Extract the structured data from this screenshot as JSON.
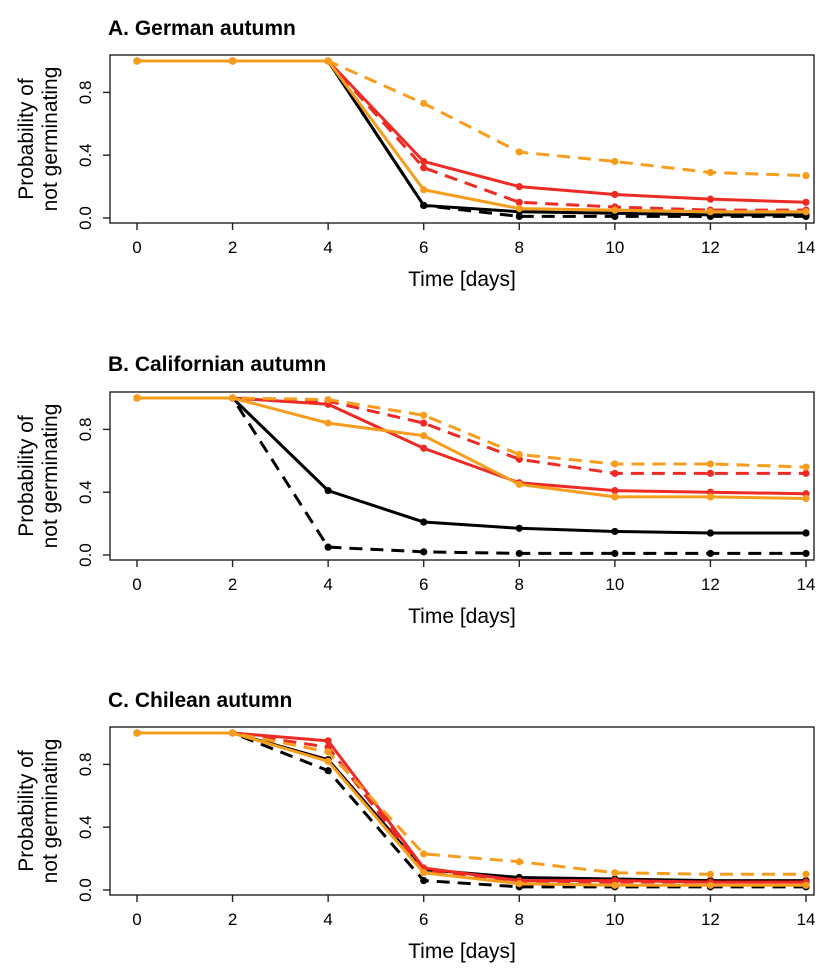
{
  "chart_data": [
    {
      "type": "line",
      "title": "A. German autumn",
      "xlabel": "Time [days]",
      "ylabel": [
        "Probability of",
        "not germinating"
      ],
      "x": [
        0,
        2,
        4,
        6,
        8,
        10,
        12,
        14
      ],
      "xlim": [
        0,
        14
      ],
      "ylim": [
        0,
        1
      ],
      "xticks": [
        "0",
        "2",
        "4",
        "6",
        "8",
        "10",
        "12",
        "14"
      ],
      "yticks": [
        "0.0",
        "0.4",
        "0.8"
      ],
      "ytick_values": [
        0,
        0.4,
        0.8
      ],
      "grid": false,
      "series": [
        {
          "color": "#000000",
          "dashed": false,
          "values": [
            1.0,
            1.0,
            1.0,
            0.08,
            0.04,
            0.03,
            0.02,
            0.02
          ]
        },
        {
          "color": "#000000",
          "dashed": true,
          "values": [
            1.0,
            1.0,
            1.0,
            0.08,
            0.01,
            0.01,
            0.01,
            0.01
          ]
        },
        {
          "color": "#ee2a24",
          "dashed": false,
          "values": [
            1.0,
            1.0,
            1.0,
            0.36,
            0.2,
            0.15,
            0.12,
            0.1
          ]
        },
        {
          "color": "#ee2a24",
          "dashed": true,
          "values": [
            1.0,
            1.0,
            1.0,
            0.32,
            0.1,
            0.07,
            0.05,
            0.05
          ]
        },
        {
          "color": "#f79d1e",
          "dashed": false,
          "values": [
            1.0,
            1.0,
            1.0,
            0.18,
            0.06,
            0.05,
            0.04,
            0.04
          ]
        },
        {
          "color": "#f79d1e",
          "dashed": true,
          "values": [
            1.0,
            1.0,
            1.0,
            0.73,
            0.42,
            0.36,
            0.29,
            0.27
          ]
        }
      ]
    },
    {
      "type": "line",
      "title": "B. Californian autumn",
      "xlabel": "Time [days]",
      "ylabel": [
        "Probability of",
        "not germinating"
      ],
      "x": [
        0,
        2,
        4,
        6,
        8,
        10,
        12,
        14
      ],
      "xlim": [
        0,
        14
      ],
      "ylim": [
        0,
        1
      ],
      "xticks": [
        "0",
        "2",
        "4",
        "6",
        "8",
        "10",
        "12",
        "14"
      ],
      "yticks": [
        "0.0",
        "0.4",
        "0.8"
      ],
      "ytick_values": [
        0,
        0.4,
        0.8
      ],
      "grid": false,
      "series": [
        {
          "color": "#000000",
          "dashed": false,
          "values": [
            1.0,
            1.0,
            0.41,
            0.21,
            0.17,
            0.15,
            0.14,
            0.14
          ]
        },
        {
          "color": "#000000",
          "dashed": true,
          "values": [
            1.0,
            1.0,
            0.05,
            0.02,
            0.01,
            0.01,
            0.01,
            0.01
          ]
        },
        {
          "color": "#ee2a24",
          "dashed": false,
          "values": [
            1.0,
            1.0,
            0.96,
            0.68,
            0.46,
            0.41,
            0.4,
            0.39
          ]
        },
        {
          "color": "#ee2a24",
          "dashed": true,
          "values": [
            1.0,
            1.0,
            0.98,
            0.84,
            0.61,
            0.52,
            0.52,
            0.52
          ]
        },
        {
          "color": "#f79d1e",
          "dashed": false,
          "values": [
            1.0,
            1.0,
            0.84,
            0.76,
            0.45,
            0.37,
            0.37,
            0.36
          ]
        },
        {
          "color": "#f79d1e",
          "dashed": true,
          "values": [
            1.0,
            1.0,
            0.99,
            0.89,
            0.64,
            0.58,
            0.58,
            0.56
          ]
        }
      ]
    },
    {
      "type": "line",
      "title": "C. Chilean autumn",
      "xlabel": "Time [days]",
      "ylabel": [
        "Probability of",
        "not germinating"
      ],
      "x": [
        0,
        2,
        4,
        6,
        8,
        10,
        12,
        14
      ],
      "xlim": [
        0,
        14
      ],
      "ylim": [
        0,
        1
      ],
      "xticks": [
        "0",
        "2",
        "4",
        "6",
        "8",
        "10",
        "12",
        "14"
      ],
      "yticks": [
        "0.0",
        "0.4",
        "0.8"
      ],
      "ytick_values": [
        0,
        0.4,
        0.8
      ],
      "grid": false,
      "series": [
        {
          "color": "#000000",
          "dashed": false,
          "values": [
            1.0,
            1.0,
            0.83,
            0.13,
            0.08,
            0.07,
            0.06,
            0.06
          ]
        },
        {
          "color": "#000000",
          "dashed": true,
          "values": [
            1.0,
            1.0,
            0.76,
            0.06,
            0.02,
            0.02,
            0.02,
            0.02
          ]
        },
        {
          "color": "#ee2a24",
          "dashed": false,
          "values": [
            1.0,
            1.0,
            0.95,
            0.14,
            0.06,
            0.06,
            0.05,
            0.05
          ]
        },
        {
          "color": "#ee2a24",
          "dashed": true,
          "values": [
            1.0,
            1.0,
            0.91,
            0.12,
            0.05,
            0.05,
            0.05,
            0.05
          ]
        },
        {
          "color": "#f79d1e",
          "dashed": false,
          "values": [
            1.0,
            1.0,
            0.82,
            0.11,
            0.04,
            0.03,
            0.03,
            0.03
          ]
        },
        {
          "color": "#f79d1e",
          "dashed": true,
          "values": [
            1.0,
            1.0,
            0.88,
            0.23,
            0.18,
            0.11,
            0.1,
            0.1
          ]
        }
      ]
    }
  ]
}
